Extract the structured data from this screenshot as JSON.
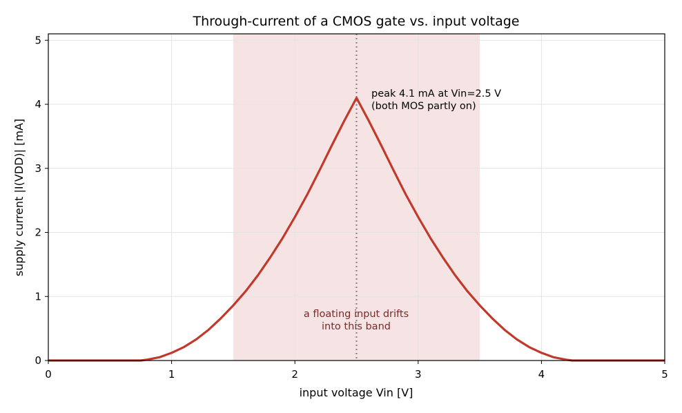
{
  "chart_data": {
    "type": "line",
    "title": "Through-current of a CMOS gate vs. input voltage",
    "xlabel": "input voltage  Vin [V]",
    "ylabel": "supply current  |I(VDD)| [mA]",
    "xlim": [
      0,
      5
    ],
    "ylim": [
      0,
      5.1
    ],
    "x_ticks": [
      0,
      1,
      2,
      3,
      4,
      5
    ],
    "y_ticks": [
      0,
      1,
      2,
      3,
      4,
      5
    ],
    "grid": true,
    "legend": "none",
    "line_color": "#c0392b",
    "band_color": "#f6e4e4",
    "peak_line_color": "#888888",
    "series": [
      {
        "x": [
          0,
          0.5,
          0.7,
          0.75,
          0.8,
          0.9,
          1.0,
          1.1,
          1.2,
          1.3,
          1.4,
          1.5,
          1.6,
          1.7,
          1.8,
          1.9,
          2.0,
          2.1,
          2.2,
          2.3,
          2.4,
          2.5,
          2.6,
          2.7,
          2.8,
          2.9,
          3.0,
          3.1,
          3.2,
          3.3,
          3.4,
          3.5,
          3.6,
          3.7,
          3.8,
          3.9,
          4.0,
          4.1,
          4.2,
          4.25,
          4.3,
          4.5,
          5.0
        ],
        "y": [
          0,
          0,
          0,
          0.0,
          0.013,
          0.05,
          0.12,
          0.21,
          0.33,
          0.48,
          0.66,
          0.86,
          1.08,
          1.33,
          1.61,
          1.91,
          2.24,
          2.59,
          2.97,
          3.36,
          3.74,
          4.1,
          3.74,
          3.36,
          2.97,
          2.59,
          2.24,
          1.91,
          1.61,
          1.33,
          1.08,
          0.86,
          0.66,
          0.48,
          0.33,
          0.21,
          0.12,
          0.05,
          0.013,
          0.0,
          0,
          0,
          0
        ]
      }
    ],
    "band": {
      "x_from": 1.5,
      "x_to": 3.5
    },
    "peak": {
      "x": 2.5,
      "y": 4.1
    },
    "annotations": {
      "peak_line1": "peak 4.1 mA at Vin=2.5 V",
      "peak_line2": "(both MOS partly on)",
      "band_line1": "a floating input drifts",
      "band_line2": "into this band"
    }
  }
}
